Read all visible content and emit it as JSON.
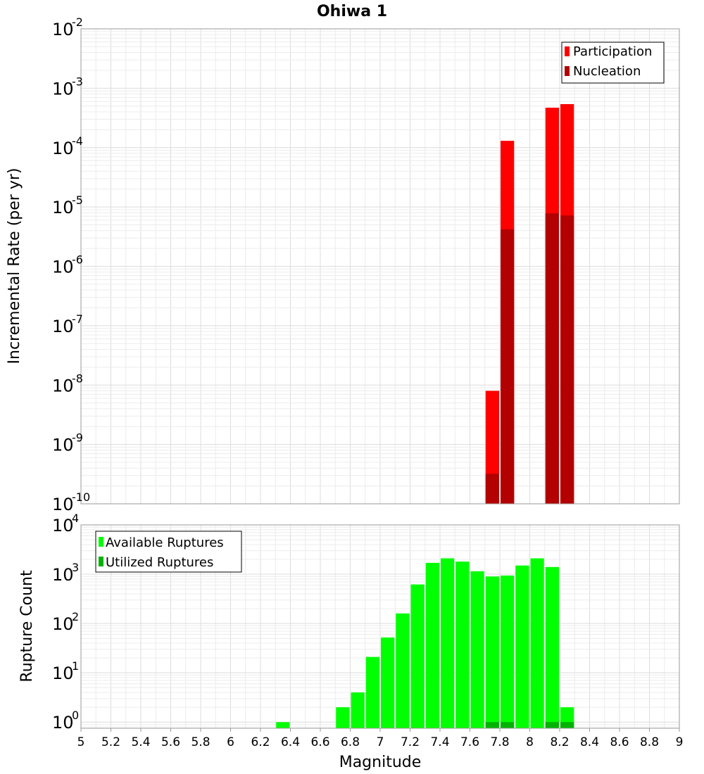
{
  "chart_data": [
    {
      "type": "bar",
      "title": "Ohiwa 1",
      "xlabel": "",
      "ylabel": "Incremental Rate (per yr)",
      "yscale": "log",
      "ylim": [
        1e-10,
        0.01
      ],
      "xlim": [
        5,
        9
      ],
      "grid": true,
      "legend_position": "top-right",
      "y_ticks": [
        {
          "base": "10",
          "exp": "-10"
        },
        {
          "base": "10",
          "exp": "-9"
        },
        {
          "base": "10",
          "exp": "-8"
        },
        {
          "base": "10",
          "exp": "-7"
        },
        {
          "base": "10",
          "exp": "-6"
        },
        {
          "base": "10",
          "exp": "-5"
        },
        {
          "base": "10",
          "exp": "-4"
        },
        {
          "base": "10",
          "exp": "-3"
        },
        {
          "base": "10",
          "exp": "-2"
        }
      ],
      "series": [
        {
          "name": "Participation",
          "color": "#ff0000",
          "points": [
            {
              "x": 7.75,
              "y": 8e-09
            },
            {
              "x": 7.85,
              "y": 0.00013
            },
            {
              "x": 8.15,
              "y": 0.00047
            },
            {
              "x": 8.25,
              "y": 0.00054
            }
          ]
        },
        {
          "name": "Nucleation",
          "color": "#b30000",
          "points": [
            {
              "x": 7.75,
              "y": 3.2e-10
            },
            {
              "x": 7.85,
              "y": 4.2e-06
            },
            {
              "x": 8.15,
              "y": 7.8e-06
            },
            {
              "x": 8.25,
              "y": 7.2e-06
            }
          ]
        }
      ]
    },
    {
      "type": "bar",
      "xlabel": "Magnitude",
      "ylabel": "Rupture Count",
      "yscale": "log",
      "ylim": [
        0.75,
        10000
      ],
      "xlim": [
        5,
        9
      ],
      "grid": true,
      "legend_position": "top-left",
      "x_ticks": [
        "5",
        "5.2",
        "5.4",
        "5.6",
        "5.8",
        "6",
        "6.2",
        "6.4",
        "6.6",
        "6.8",
        "7",
        "7.2",
        "7.4",
        "7.6",
        "7.8",
        "8",
        "8.2",
        "8.4",
        "8.6",
        "8.8",
        "9"
      ],
      "y_ticks": [
        {
          "base": "10",
          "exp": "0"
        },
        {
          "base": "10",
          "exp": "1"
        },
        {
          "base": "10",
          "exp": "2"
        },
        {
          "base": "10",
          "exp": "3"
        },
        {
          "base": "10",
          "exp": "4"
        }
      ],
      "series": [
        {
          "name": "Available Ruptures",
          "color": "#00ff00",
          "points": [
            {
              "x": 6.35,
              "y": 1
            },
            {
              "x": 6.75,
              "y": 2
            },
            {
              "x": 6.85,
              "y": 4
            },
            {
              "x": 6.95,
              "y": 21
            },
            {
              "x": 7.05,
              "y": 52
            },
            {
              "x": 7.15,
              "y": 160
            },
            {
              "x": 7.25,
              "y": 620
            },
            {
              "x": 7.35,
              "y": 1700
            },
            {
              "x": 7.45,
              "y": 2100
            },
            {
              "x": 7.55,
              "y": 1800
            },
            {
              "x": 7.65,
              "y": 1150
            },
            {
              "x": 7.75,
              "y": 900
            },
            {
              "x": 7.85,
              "y": 940
            },
            {
              "x": 7.95,
              "y": 1500
            },
            {
              "x": 8.05,
              "y": 2100
            },
            {
              "x": 8.15,
              "y": 1400
            },
            {
              "x": 8.25,
              "y": 2
            }
          ]
        },
        {
          "name": "Utilized Ruptures",
          "color": "#00b300",
          "points": [
            {
              "x": 7.75,
              "y": 1
            },
            {
              "x": 7.85,
              "y": 1
            },
            {
              "x": 8.15,
              "y": 1
            },
            {
              "x": 8.25,
              "y": 1
            }
          ]
        }
      ]
    }
  ]
}
